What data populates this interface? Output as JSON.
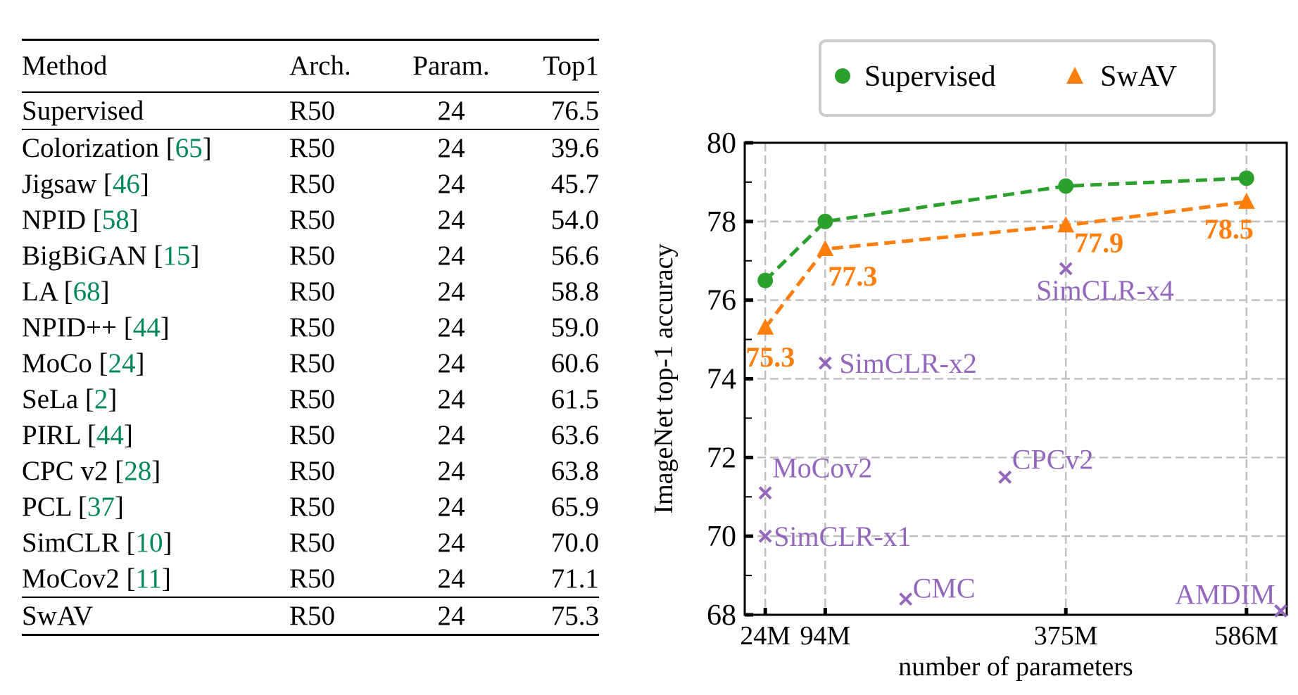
{
  "table": {
    "headers": [
      "Method",
      "Arch.",
      "Param.",
      "Top1"
    ],
    "supervised_row": {
      "method": "Supervised",
      "ref": "",
      "arch": "R50",
      "param": "24",
      "top1": "76.5"
    },
    "rows": [
      {
        "method": "Colorization",
        "ref": "65",
        "arch": "R50",
        "param": "24",
        "top1": "39.6"
      },
      {
        "method": "Jigsaw",
        "ref": "46",
        "arch": "R50",
        "param": "24",
        "top1": "45.7"
      },
      {
        "method": "NPID",
        "ref": "58",
        "arch": "R50",
        "param": "24",
        "top1": "54.0"
      },
      {
        "method": "BigBiGAN",
        "ref": "15",
        "arch": "R50",
        "param": "24",
        "top1": "56.6"
      },
      {
        "method": "LA",
        "ref": "68",
        "arch": "R50",
        "param": "24",
        "top1": "58.8"
      },
      {
        "method": "NPID++",
        "ref": "44",
        "arch": "R50",
        "param": "24",
        "top1": "59.0"
      },
      {
        "method": "MoCo",
        "ref": "24",
        "arch": "R50",
        "param": "24",
        "top1": "60.6"
      },
      {
        "method": "SeLa",
        "ref": "2",
        "arch": "R50",
        "param": "24",
        "top1": "61.5"
      },
      {
        "method": "PIRL",
        "ref": "44",
        "arch": "R50",
        "param": "24",
        "top1": "63.6"
      },
      {
        "method": "CPC v2",
        "ref": "28",
        "arch": "R50",
        "param": "24",
        "top1": "63.8"
      },
      {
        "method": "PCL",
        "ref": "37",
        "arch": "R50",
        "param": "24",
        "top1": "65.9"
      },
      {
        "method": "SimCLR",
        "ref": "10",
        "arch": "R50",
        "param": "24",
        "top1": "70.0"
      },
      {
        "method": "MoCov2",
        "ref": "11",
        "arch": "R50",
        "param": "24",
        "top1": "71.1"
      }
    ],
    "swav_row": {
      "method": "SwAV",
      "ref": "",
      "arch": "R50",
      "param": "24",
      "top1": "75.3"
    }
  },
  "chart_data": {
    "type": "line",
    "title": "",
    "xlabel": "number of parameters",
    "ylabel": "ImageNet top-1 accuracy",
    "xlim": [
      0,
      633
    ],
    "ylim": [
      68,
      80
    ],
    "x_ticks": [
      24,
      94,
      375,
      586
    ],
    "x_tick_labels": [
      "24M",
      "94M",
      "375M",
      "586M"
    ],
    "y_ticks": [
      68,
      70,
      72,
      74,
      76,
      78,
      80
    ],
    "y_tick_labels": [
      "68",
      "70",
      "72",
      "74",
      "76",
      "78",
      "80"
    ],
    "y_minor_ticks": [
      69,
      71,
      73,
      75,
      77,
      79
    ],
    "grid": true,
    "legend_placement": "top",
    "series": [
      {
        "name": "Supervised",
        "marker": "circle",
        "color": "#2ca02c",
        "x": [
          24,
          94,
          375,
          586
        ],
        "y": [
          76.5,
          78.0,
          78.9,
          79.1
        ],
        "labels": []
      },
      {
        "name": "SwAV",
        "marker": "triangle",
        "color": "#ff7f0e",
        "x": [
          24,
          94,
          375,
          586
        ],
        "y": [
          75.3,
          77.3,
          77.9,
          78.5
        ],
        "labels": [
          "75.3",
          "77.3",
          "77.9",
          "78.5"
        ]
      }
    ],
    "other_methods": {
      "color": "#9467bd",
      "marker": "x",
      "points": [
        {
          "name": "MoCov2",
          "x": 24,
          "y": 71.1
        },
        {
          "name": "SimCLR-x1",
          "x": 24,
          "y": 70.0
        },
        {
          "name": "SimCLR-x2",
          "x": 94,
          "y": 74.4
        },
        {
          "name": "SimCLR-x4",
          "x": 375,
          "y": 76.8
        },
        {
          "name": "CPCv2",
          "x": 304,
          "y": 71.5
        },
        {
          "name": "CMC",
          "x": 188,
          "y": 68.4
        },
        {
          "name": "AMDIM",
          "x": 626,
          "y": 68.1
        }
      ]
    }
  }
}
